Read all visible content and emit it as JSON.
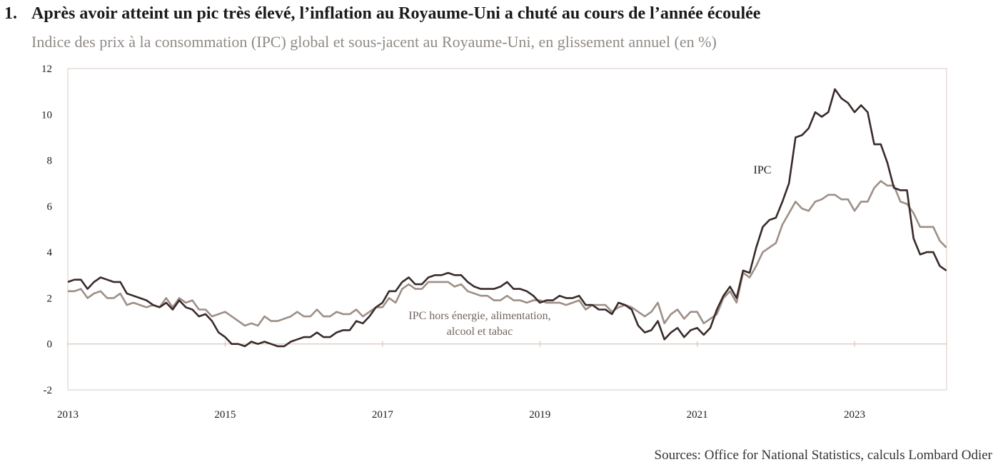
{
  "header": {
    "number": "1.",
    "title": "Après avoir atteint un pic très élevé, l’inflation au Royaume-Uni a chuté au cours de l’année écoulée",
    "subtitle": "Indice des prix à la consommation (IPC) global et sous-jacent au Royaume-Uni, en glissement annuel (en %)"
  },
  "footer": {
    "source": "Sources: Office for National Statistics, calculs Lombard Odier"
  },
  "colors": {
    "ipc": "#3a2a2a",
    "core": "#9e8f86",
    "frame": "#d9c8c0",
    "zero": "#cdb9b0"
  },
  "chart_data": {
    "type": "line",
    "title": "Après avoir atteint un pic très élevé, l’inflation au Royaume-Uni a chuté au cours de l’année écoulée",
    "subtitle": "Indice des prix à la consommation (IPC) global et sous-jacent au Royaume-Uni, en glissement annuel (en %)",
    "xlabel": "",
    "ylabel": "",
    "xlim": [
      2013.0,
      2024.17
    ],
    "ylim": [
      -2,
      12
    ],
    "x_ticks": [
      "2013",
      "2015",
      "2017",
      "2019",
      "2021",
      "2023"
    ],
    "y_ticks": [
      "12",
      "10",
      "8",
      "6",
      "4",
      "2",
      "0",
      "-2"
    ],
    "grid": false,
    "legend": "inline labels",
    "annotations": [
      {
        "text": "IPC",
        "series": "IPC"
      },
      {
        "text": "IPC hors énergie, alimentation,",
        "series": "IPC hors énergie, alimentation, alcool et tabac"
      },
      {
        "text": "alcool et tabac",
        "series": "IPC hors énergie, alimentation, alcool et tabac"
      }
    ],
    "series": [
      {
        "name": "IPC",
        "start": "2013-01",
        "values": [
          2.7,
          2.8,
          2.8,
          2.4,
          2.7,
          2.9,
          2.8,
          2.7,
          2.7,
          2.2,
          2.1,
          2.0,
          1.9,
          1.7,
          1.6,
          1.8,
          1.5,
          1.9,
          1.6,
          1.5,
          1.2,
          1.3,
          1.0,
          0.5,
          0.3,
          0.0,
          0.0,
          -0.1,
          0.1,
          0.0,
          0.1,
          0.0,
          -0.1,
          -0.1,
          0.1,
          0.2,
          0.3,
          0.3,
          0.5,
          0.3,
          0.3,
          0.5,
          0.6,
          0.6,
          1.0,
          0.9,
          1.2,
          1.6,
          1.8,
          2.3,
          2.3,
          2.7,
          2.9,
          2.6,
          2.6,
          2.9,
          3.0,
          3.0,
          3.1,
          3.0,
          3.0,
          2.7,
          2.5,
          2.4,
          2.4,
          2.4,
          2.5,
          2.7,
          2.4,
          2.4,
          2.3,
          2.1,
          1.8,
          1.9,
          1.9,
          2.1,
          2.0,
          2.0,
          2.1,
          1.7,
          1.7,
          1.5,
          1.5,
          1.3,
          1.8,
          1.7,
          1.5,
          0.8,
          0.5,
          0.6,
          1.0,
          0.2,
          0.5,
          0.7,
          0.3,
          0.6,
          0.7,
          0.4,
          0.7,
          1.5,
          2.1,
          2.5,
          2.0,
          3.2,
          3.1,
          4.2,
          5.1,
          5.4,
          5.5,
          6.2,
          7.0,
          9.0,
          9.1,
          9.4,
          10.1,
          9.9,
          10.1,
          11.1,
          10.7,
          10.5,
          10.1,
          10.4,
          10.1,
          8.7,
          8.7,
          7.9,
          6.8,
          6.7,
          6.7,
          4.6,
          3.9,
          4.0,
          4.0,
          3.4,
          3.2
        ]
      },
      {
        "name": "IPC hors énergie, alimentation, alcool et tabac",
        "start": "2013-01",
        "values": [
          2.3,
          2.3,
          2.4,
          2.0,
          2.2,
          2.3,
          2.0,
          2.0,
          2.2,
          1.7,
          1.8,
          1.7,
          1.6,
          1.7,
          1.6,
          2.0,
          1.6,
          2.0,
          1.8,
          1.9,
          1.5,
          1.5,
          1.2,
          1.3,
          1.4,
          1.2,
          1.0,
          0.8,
          0.9,
          0.8,
          1.2,
          1.0,
          1.0,
          1.1,
          1.2,
          1.4,
          1.2,
          1.2,
          1.5,
          1.2,
          1.2,
          1.4,
          1.3,
          1.3,
          1.5,
          1.2,
          1.4,
          1.6,
          1.6,
          2.0,
          1.8,
          2.4,
          2.6,
          2.4,
          2.4,
          2.7,
          2.7,
          2.7,
          2.7,
          2.5,
          2.6,
          2.3,
          2.2,
          2.1,
          2.1,
          1.9,
          1.9,
          2.1,
          1.9,
          1.9,
          1.8,
          1.9,
          1.9,
          1.8,
          1.8,
          1.8,
          1.7,
          1.8,
          1.9,
          1.5,
          1.7,
          1.7,
          1.7,
          1.4,
          1.6,
          1.7,
          1.6,
          1.4,
          1.2,
          1.4,
          1.8,
          0.9,
          1.3,
          1.5,
          1.1,
          1.4,
          1.4,
          0.9,
          1.1,
          1.3,
          2.0,
          2.3,
          1.8,
          3.1,
          2.9,
          3.4,
          4.0,
          4.2,
          4.4,
          5.2,
          5.7,
          6.2,
          5.9,
          5.8,
          6.2,
          6.3,
          6.5,
          6.5,
          6.3,
          6.3,
          5.8,
          6.2,
          6.2,
          6.8,
          7.1,
          6.9,
          6.9,
          6.2,
          6.1,
          5.7,
          5.1,
          5.1,
          5.1,
          4.5,
          4.2
        ]
      }
    ]
  }
}
